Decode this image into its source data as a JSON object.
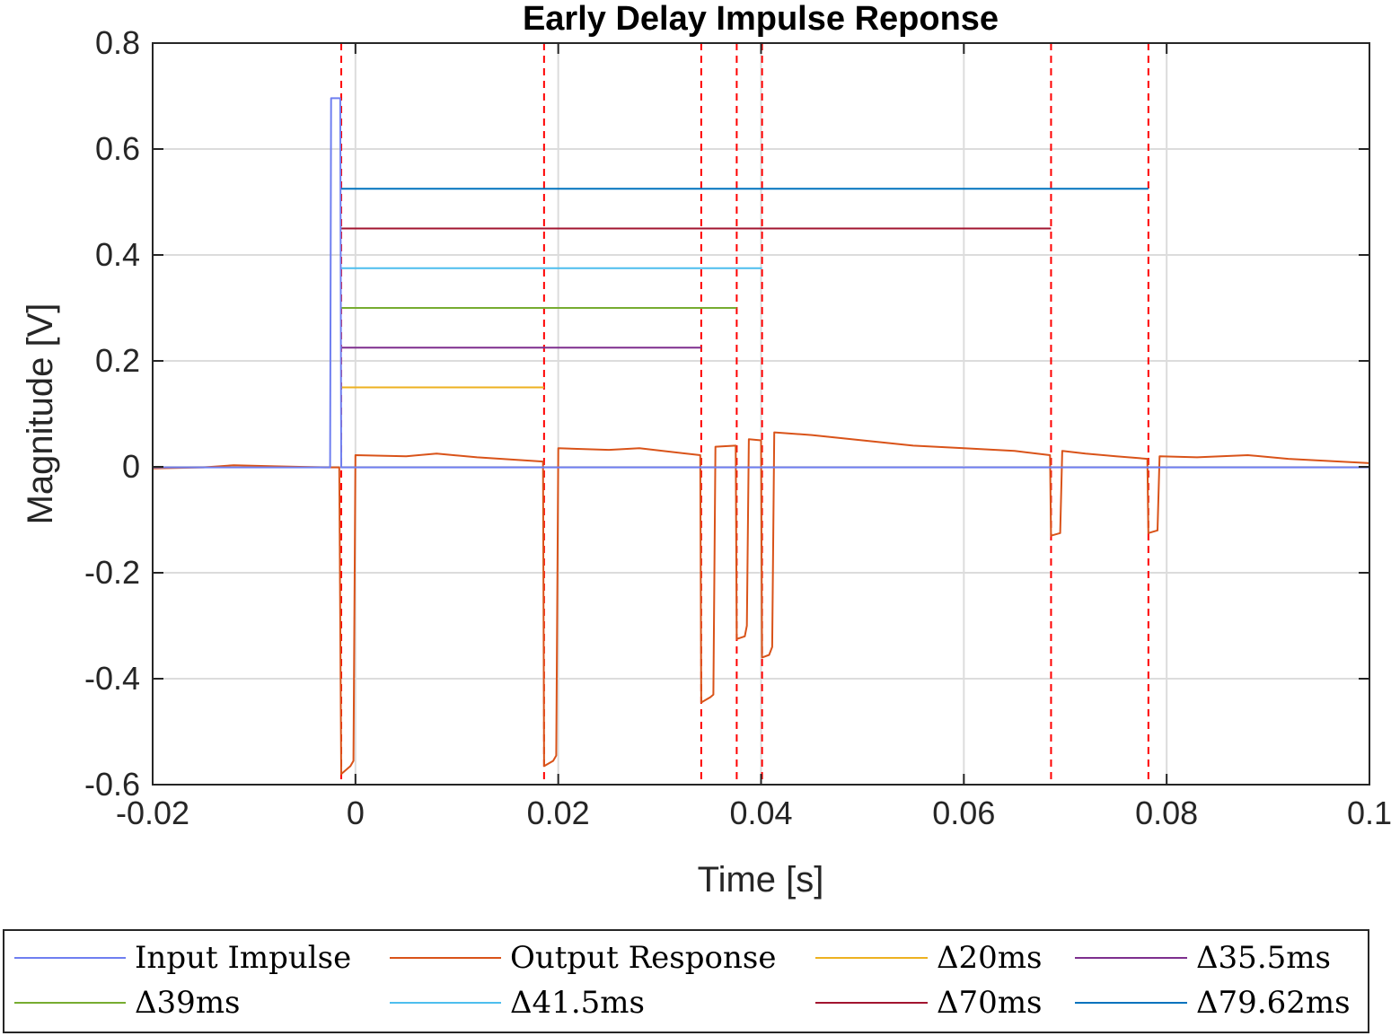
{
  "chart_data": {
    "type": "line",
    "title": "Early Delay Impulse Reponse",
    "xlabel": "Time [s]",
    "ylabel": "Magnitude [V]",
    "xlim": [
      -0.02,
      0.1
    ],
    "ylim": [
      -0.6,
      0.8
    ],
    "x_ticks": [
      -0.02,
      0,
      0.02,
      0.04,
      0.06,
      0.08,
      0.1
    ],
    "x_tick_labels": [
      "-0.02",
      "0",
      "0.02",
      "0.04",
      "0.06",
      "0.08",
      "0.1"
    ],
    "y_ticks": [
      -0.6,
      -0.4,
      -0.2,
      0,
      0.2,
      0.4,
      0.6,
      0.8
    ],
    "y_tick_labels": [
      "-0.6",
      "-0.4",
      "-0.2",
      "0",
      "0.2",
      "0.4",
      "0.6",
      "0.8"
    ],
    "grid": true,
    "legend_position": "below",
    "vertical_markers": {
      "color": "#ff0000",
      "style": "dashed",
      "x": [
        -0.0014,
        0.0186,
        0.0341,
        0.0376,
        0.0401,
        0.0686,
        0.0782
      ]
    },
    "series": [
      {
        "name": "Input Impulse",
        "color": "#6f7ff0",
        "points": [
          [
            -0.02,
            -0.001
          ],
          [
            -0.0025,
            -0.001
          ],
          [
            -0.0024,
            0.696
          ],
          [
            -0.0015,
            0.696
          ],
          [
            -0.0014,
            -0.001
          ],
          [
            0.1,
            -0.001
          ]
        ]
      },
      {
        "name": "Output Response",
        "color": "#d95319",
        "points": [
          [
            -0.02,
            -0.003
          ],
          [
            -0.015,
            -0.001
          ],
          [
            -0.012,
            0.003
          ],
          [
            -0.008,
            0.001
          ],
          [
            -0.003,
            -0.001
          ],
          [
            -0.0016,
            -0.001
          ],
          [
            -0.0014,
            -0.58
          ],
          [
            -0.0005,
            -0.565
          ],
          [
            -0.0002,
            -0.555
          ],
          [
            0.0,
            0.022
          ],
          [
            0.005,
            0.02
          ],
          [
            0.008,
            0.025
          ],
          [
            0.012,
            0.018
          ],
          [
            0.0185,
            0.01
          ],
          [
            0.0186,
            -0.565
          ],
          [
            0.0195,
            -0.555
          ],
          [
            0.0198,
            -0.545
          ],
          [
            0.02,
            0.035
          ],
          [
            0.025,
            0.032
          ],
          [
            0.028,
            0.035
          ],
          [
            0.034,
            0.022
          ],
          [
            0.0341,
            -0.445
          ],
          [
            0.035,
            -0.435
          ],
          [
            0.0353,
            -0.43
          ],
          [
            0.0355,
            0.038
          ],
          [
            0.0375,
            0.04
          ],
          [
            0.0376,
            -0.325
          ],
          [
            0.0384,
            -0.32
          ],
          [
            0.0386,
            -0.3
          ],
          [
            0.0388,
            0.052
          ],
          [
            0.04,
            0.05
          ],
          [
            0.0401,
            -0.36
          ],
          [
            0.0408,
            -0.355
          ],
          [
            0.0411,
            -0.34
          ],
          [
            0.0413,
            0.065
          ],
          [
            0.045,
            0.06
          ],
          [
            0.05,
            0.05
          ],
          [
            0.055,
            0.04
          ],
          [
            0.06,
            0.035
          ],
          [
            0.065,
            0.03
          ],
          [
            0.0685,
            0.022
          ],
          [
            0.0686,
            -0.13
          ],
          [
            0.0695,
            -0.125
          ],
          [
            0.0697,
            0.03
          ],
          [
            0.072,
            0.025
          ],
          [
            0.075,
            0.02
          ],
          [
            0.0781,
            0.015
          ],
          [
            0.0782,
            -0.125
          ],
          [
            0.0791,
            -0.12
          ],
          [
            0.0793,
            0.02
          ],
          [
            0.083,
            0.018
          ],
          [
            0.088,
            0.022
          ],
          [
            0.092,
            0.015
          ],
          [
            0.1,
            0.007
          ]
        ]
      },
      {
        "name": "Δ20ms",
        "color": "#edb120",
        "points": [
          [
            -0.0014,
            0.15
          ],
          [
            0.0186,
            0.15
          ]
        ]
      },
      {
        "name": "Δ35.5ms",
        "color": "#7e2f8e",
        "points": [
          [
            -0.0014,
            0.225
          ],
          [
            0.0341,
            0.225
          ]
        ]
      },
      {
        "name": "Δ39ms",
        "color": "#77ac30",
        "points": [
          [
            -0.0014,
            0.3
          ],
          [
            0.0376,
            0.3
          ]
        ]
      },
      {
        "name": "Δ41.5ms",
        "color": "#4dbeee",
        "points": [
          [
            -0.0014,
            0.375
          ],
          [
            0.0401,
            0.375
          ]
        ]
      },
      {
        "name": "Δ70ms",
        "color": "#a2142f",
        "points": [
          [
            -0.0014,
            0.45
          ],
          [
            0.0686,
            0.45
          ]
        ]
      },
      {
        "name": "Δ79.62ms",
        "color": "#0072bd",
        "points": [
          [
            -0.0014,
            0.525
          ],
          [
            0.0782,
            0.525
          ]
        ]
      }
    ]
  }
}
